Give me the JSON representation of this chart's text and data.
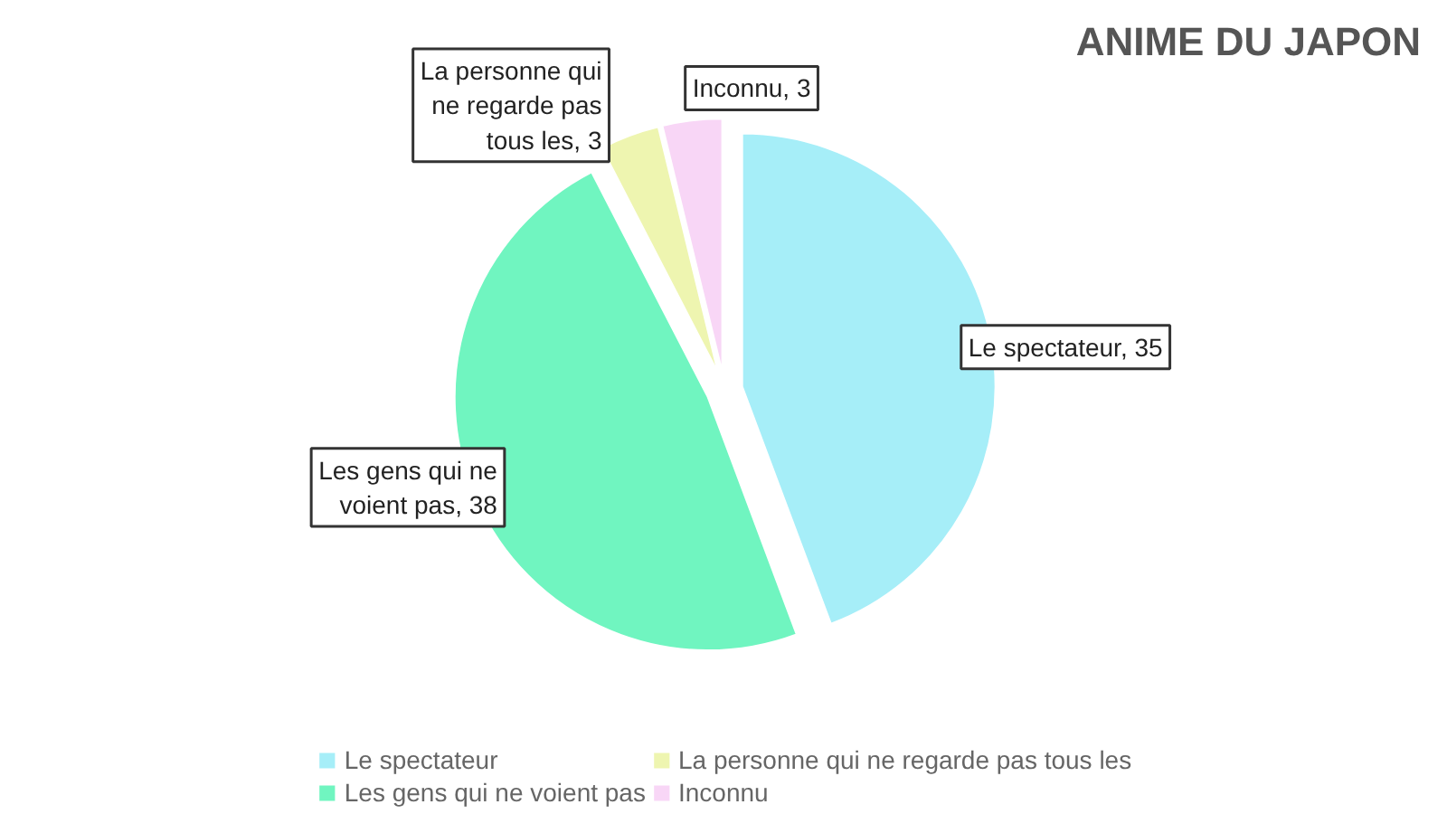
{
  "chart_data": {
    "type": "pie",
    "title": "ANIME DU JAPON",
    "categories": [
      "Le spectateur",
      "Les gens qui ne voient pas",
      "La personne qui ne regarde pas tous les",
      "Inconnu"
    ],
    "values": [
      35,
      38,
      3,
      3
    ],
    "colors": [
      "#a6eef8",
      "#70f5c0",
      "#eef5b0",
      "#f8d6f6"
    ],
    "value_labels": [
      "Le spectateur, 35",
      "Les gens qui ne voient pas, 38",
      "La personne qui ne regarde pas tous les, 3",
      "Inconnu, 3"
    ],
    "legend": "bottom"
  }
}
